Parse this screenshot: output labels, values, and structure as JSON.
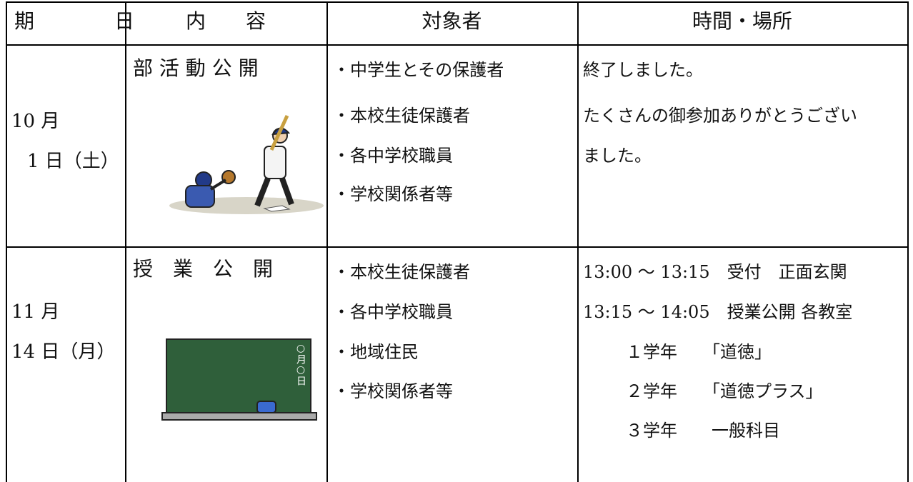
{
  "table": {
    "header": [
      "期　　　　日",
      "内　　容",
      "対象者",
      "時間・場所"
    ],
    "rows": [
      {
        "date": [
          "10 月",
          "1 日（土）"
        ],
        "event": "部 活 動 公 開",
        "audience": [
          "・中学生とその保護者",
          "・本校生徒保護者",
          "・各中学校職員",
          "・学校関係者等"
        ],
        "details": [
          "終了しました。",
          "たくさんの御参加ありがとうござい",
          "ました。"
        ]
      },
      {
        "date": [
          "11 月",
          "14 日（月）"
        ],
        "event": "授　業　公　開",
        "board_text": "○月○日",
        "audience": [
          "・本校生徒保護者",
          "・各中学校職員",
          "・地域住民",
          "・学校関係者等"
        ],
        "details": [
          "13:00 ～ 13:15　受付　正面玄関",
          "13:15 ～ 14:05　授業公開 各教室",
          "１学年　　「道徳」",
          "２学年　　「道徳プラス」",
          "３学年　　一般科目"
        ]
      }
    ]
  }
}
